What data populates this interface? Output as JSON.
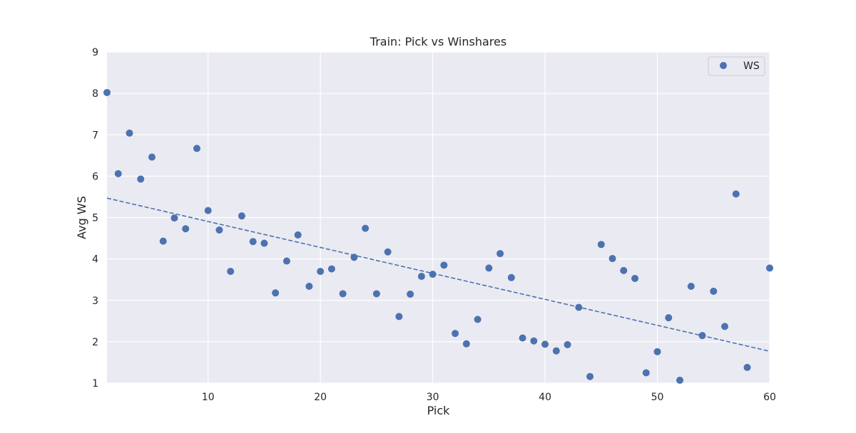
{
  "chart_data": {
    "type": "scatter",
    "title": "Train: Pick vs Winshares",
    "xlabel": "Pick",
    "ylabel": "Avg WS",
    "xlim": [
      1,
      60
    ],
    "ylim": [
      1,
      9
    ],
    "xticks": [
      10,
      20,
      30,
      40,
      50,
      60
    ],
    "yticks": [
      1,
      2,
      3,
      4,
      5,
      6,
      7,
      8,
      9
    ],
    "grid": true,
    "legend": {
      "position": "top-right",
      "entries": [
        "WS"
      ]
    },
    "colors": {
      "points": "#4c72b0",
      "trend": "#4c72b0",
      "background": "#eaeaf2",
      "grid": "#ffffff"
    },
    "series": [
      {
        "name": "WS",
        "x": [
          1,
          2,
          3,
          4,
          5,
          6,
          7,
          8,
          9,
          10,
          11,
          12,
          13,
          14,
          15,
          16,
          17,
          18,
          19,
          20,
          21,
          22,
          23,
          24,
          25,
          26,
          27,
          28,
          29,
          30,
          31,
          32,
          33,
          34,
          35,
          36,
          37,
          38,
          39,
          40,
          41,
          42,
          43,
          44,
          45,
          46,
          47,
          48,
          49,
          50,
          51,
          52,
          53,
          54,
          55,
          56,
          57,
          58,
          60
        ],
        "y": [
          8.02,
          6.06,
          7.04,
          5.93,
          6.46,
          4.43,
          4.99,
          4.73,
          6.67,
          5.17,
          4.7,
          3.7,
          5.04,
          4.42,
          4.38,
          3.18,
          3.95,
          4.58,
          3.34,
          3.7,
          3.76,
          3.16,
          4.04,
          4.74,
          3.16,
          4.17,
          2.61,
          3.15,
          3.58,
          3.63,
          3.85,
          2.2,
          1.95,
          2.54,
          3.78,
          4.13,
          3.55,
          2.09,
          2.02,
          1.94,
          1.78,
          1.93,
          2.83,
          1.16,
          4.35,
          4.01,
          3.72,
          3.53,
          1.25,
          1.76,
          2.58,
          1.07,
          3.34,
          2.15,
          3.22,
          2.37,
          5.57,
          1.38,
          3.78
        ]
      }
    ],
    "trend_line": {
      "x": [
        1,
        60
      ],
      "y": [
        5.47,
        1.77
      ],
      "style": "dashed"
    }
  }
}
